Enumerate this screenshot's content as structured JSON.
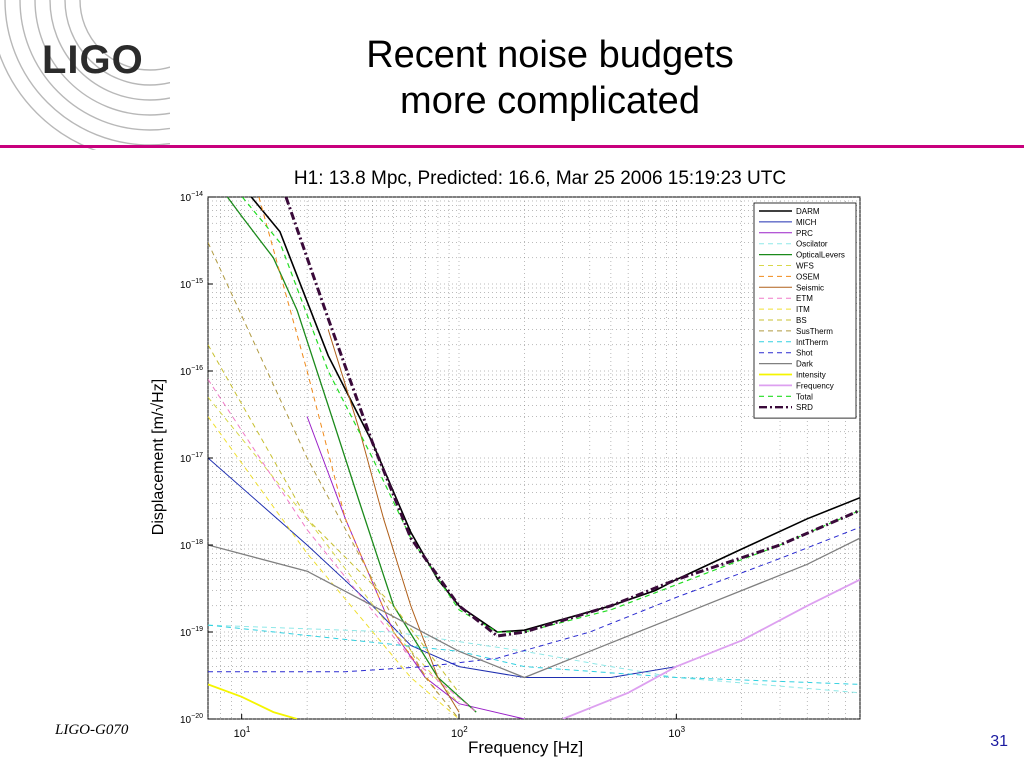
{
  "slide": {
    "logo_text": "LIGO",
    "title_line1": "Recent noise budgets",
    "title_line2": "more complicated",
    "footer_id": "LIGO-G070",
    "page_number": "31",
    "accent_color": "#c8007d"
  },
  "chart_data": {
    "type": "line",
    "title": "H1: 13.8 Mpc, Predicted: 16.6, Mar 25 2006 15:19:23 UTC",
    "xlabel": "Frequency [Hz]",
    "ylabel": "Displacement [m/√Hz]",
    "x_scale": "log",
    "y_scale": "log",
    "xlim": [
      7,
      7000
    ],
    "ylim": [
      1e-20,
      1e-14
    ],
    "x_ticks": [
      {
        "v": 10,
        "label": "10",
        "exp": "1"
      },
      {
        "v": 100,
        "label": "10",
        "exp": "2"
      },
      {
        "v": 1000,
        "label": "10",
        "exp": "3"
      }
    ],
    "y_ticks": [
      {
        "v": 1e-20,
        "label": "10",
        "exp": "−20"
      },
      {
        "v": 1e-19,
        "label": "10",
        "exp": "−19"
      },
      {
        "v": 1e-18,
        "label": "10",
        "exp": "−18"
      },
      {
        "v": 1e-17,
        "label": "10",
        "exp": "−17"
      },
      {
        "v": 1e-16,
        "label": "10",
        "exp": "−16"
      },
      {
        "v": 1e-15,
        "label": "10",
        "exp": "−15"
      },
      {
        "v": 1e-14,
        "label": "10",
        "exp": "−14"
      }
    ],
    "grid": true,
    "legend_position": "top-right",
    "series": [
      {
        "name": "DARM",
        "color": "#000000",
        "dash": "solid",
        "width": 1.6,
        "points": [
          [
            7,
            4e-14
          ],
          [
            15,
            4e-15
          ],
          [
            25,
            1.5e-16
          ],
          [
            40,
            1.5e-17
          ],
          [
            60,
            1.4e-18
          ],
          [
            80,
            4e-19
          ],
          [
            100,
            2e-19
          ],
          [
            150,
            1e-19
          ],
          [
            200,
            1.05e-19
          ],
          [
            300,
            1.4e-19
          ],
          [
            500,
            2e-19
          ],
          [
            800,
            3e-19
          ],
          [
            1000,
            4e-19
          ],
          [
            2000,
            9e-19
          ],
          [
            4000,
            2e-18
          ],
          [
            7000,
            3.5e-18
          ]
        ]
      },
      {
        "name": "MICH",
        "color": "#1f2fb0",
        "dash": "solid",
        "width": 1,
        "points": [
          [
            7,
            1e-17
          ],
          [
            20,
            1e-18
          ],
          [
            40,
            2e-19
          ],
          [
            60,
            7e-20
          ],
          [
            100,
            4e-20
          ],
          [
            200,
            3e-20
          ],
          [
            500,
            3e-20
          ],
          [
            1000,
            4e-20
          ]
        ]
      },
      {
        "name": "PRC",
        "color": "#9a20c8",
        "dash": "solid",
        "width": 1,
        "points": [
          [
            20,
            3e-17
          ],
          [
            30,
            2e-18
          ],
          [
            50,
            1e-19
          ],
          [
            70,
            3e-20
          ],
          [
            100,
            1.5e-20
          ],
          [
            200,
            1e-20
          ]
        ]
      },
      {
        "name": "Oscilator",
        "color": "#8fe8e8",
        "dash": "5,4",
        "width": 1,
        "points": [
          [
            7,
            1.2e-19
          ],
          [
            50,
            1e-19
          ],
          [
            200,
            6e-20
          ],
          [
            500,
            4e-20
          ],
          [
            1000,
            3e-20
          ],
          [
            7000,
            2e-20
          ]
        ]
      },
      {
        "name": "OpticalLevers",
        "color": "#1b8a1b",
        "dash": "solid",
        "width": 1.3,
        "points": [
          [
            7,
            2e-14
          ],
          [
            10,
            6e-15
          ],
          [
            14,
            2e-15
          ],
          [
            18,
            5e-16
          ],
          [
            25,
            4e-17
          ],
          [
            35,
            3e-18
          ],
          [
            50,
            2e-19
          ],
          [
            80,
            3e-20
          ],
          [
            120,
            1.2e-20
          ]
        ]
      },
      {
        "name": "WFS",
        "color": "#d8d84a",
        "dash": "5,4",
        "width": 1,
        "points": [
          [
            7,
            5e-17
          ],
          [
            20,
            2e-18
          ],
          [
            50,
            1e-19
          ],
          [
            100,
            1.5e-20
          ]
        ]
      },
      {
        "name": "OSEM",
        "color": "#f08a1a",
        "dash": "5,4",
        "width": 1,
        "points": [
          [
            12,
            1e-14
          ],
          [
            20,
            1e-16
          ],
          [
            30,
            2e-18
          ],
          [
            50,
            1e-19
          ],
          [
            80,
            2e-20
          ]
        ]
      },
      {
        "name": "Seismic",
        "color": "#b0601a",
        "dash": "solid",
        "width": 1,
        "points": [
          [
            25,
            3e-16
          ],
          [
            35,
            2e-17
          ],
          [
            45,
            2e-18
          ],
          [
            60,
            2e-19
          ],
          [
            80,
            3e-20
          ],
          [
            100,
            1.2e-20
          ]
        ]
      },
      {
        "name": "ETM",
        "color": "#f07ac8",
        "dash": "5,4",
        "width": 1,
        "points": [
          [
            7,
            8e-17
          ],
          [
            20,
            1.5e-18
          ],
          [
            60,
            5e-20
          ],
          [
            120,
            1.2e-20
          ]
        ]
      },
      {
        "name": "ITM",
        "color": "#f0e030",
        "dash": "5,4",
        "width": 1,
        "points": [
          [
            7,
            3e-17
          ],
          [
            20,
            8e-19
          ],
          [
            60,
            3e-20
          ],
          [
            100,
            1e-20
          ]
        ]
      },
      {
        "name": "BS",
        "color": "#c8c030",
        "dash": "5,4",
        "width": 1,
        "points": [
          [
            7,
            2e-16
          ],
          [
            20,
            2e-18
          ],
          [
            50,
            2e-19
          ],
          [
            100,
            2e-20
          ]
        ]
      },
      {
        "name": "SusTherm",
        "color": "#b09a40",
        "dash": "5,4",
        "width": 1,
        "points": [
          [
            7,
            3e-15
          ],
          [
            20,
            1e-17
          ],
          [
            40,
            4e-19
          ],
          [
            70,
            3e-20
          ],
          [
            100,
            1e-20
          ]
        ]
      },
      {
        "name": "IntTherm",
        "color": "#30d0e0",
        "dash": "5,4",
        "width": 1,
        "points": [
          [
            7,
            1.2e-19
          ],
          [
            100,
            6e-20
          ],
          [
            200,
            4e-20
          ],
          [
            1000,
            3e-20
          ],
          [
            7000,
            2.5e-20
          ]
        ]
      },
      {
        "name": "Shot",
        "color": "#2a2ad0",
        "dash": "5,4",
        "width": 1,
        "points": [
          [
            7,
            3.5e-20
          ],
          [
            30,
            3.5e-20
          ],
          [
            70,
            4e-20
          ],
          [
            150,
            5e-20
          ],
          [
            400,
            1e-19
          ],
          [
            1000,
            2.5e-19
          ],
          [
            3000,
            7e-19
          ],
          [
            7000,
            1.6e-18
          ]
        ]
      },
      {
        "name": "Dark",
        "color": "#808080",
        "dash": "solid",
        "width": 1.3,
        "points": [
          [
            7,
            1e-18
          ],
          [
            20,
            5e-19
          ],
          [
            50,
            1.5e-19
          ],
          [
            100,
            6e-20
          ],
          [
            200,
            3e-20
          ],
          [
            400,
            6e-20
          ],
          [
            1000,
            1.5e-19
          ],
          [
            2000,
            3e-19
          ],
          [
            4000,
            6e-19
          ],
          [
            7000,
            1.2e-18
          ]
        ]
      },
      {
        "name": "Intensity",
        "color": "#f5f500",
        "dash": "solid",
        "width": 1.8,
        "points": [
          [
            7,
            2.5e-20
          ],
          [
            10,
            1.8e-20
          ],
          [
            14,
            1.2e-20
          ],
          [
            18,
            1e-20
          ]
        ]
      },
      {
        "name": "Frequency",
        "color": "#dda0f0",
        "dash": "solid",
        "width": 1.8,
        "points": [
          [
            300,
            1e-20
          ],
          [
            600,
            2e-20
          ],
          [
            1000,
            4e-20
          ],
          [
            2000,
            8e-20
          ],
          [
            4000,
            2e-19
          ],
          [
            7000,
            4e-19
          ]
        ]
      },
      {
        "name": "Total",
        "color": "#22dd22",
        "dash": "5,4",
        "width": 1.2,
        "points": [
          [
            7,
            3e-14
          ],
          [
            15,
            3e-15
          ],
          [
            25,
            1e-16
          ],
          [
            40,
            1e-17
          ],
          [
            60,
            1.2e-18
          ],
          [
            100,
            1.8e-19
          ],
          [
            150,
            1e-19
          ],
          [
            200,
            1e-19
          ],
          [
            500,
            1.8e-19
          ],
          [
            1000,
            3.5e-19
          ],
          [
            3000,
            1e-18
          ],
          [
            7000,
            2.5e-18
          ]
        ]
      },
      {
        "name": "SRD",
        "color": "#3a0a3a",
        "dash": "8,3,2,3",
        "width": 3,
        "points": [
          [
            16,
            1e-14
          ],
          [
            25,
            4e-16
          ],
          [
            40,
            1.5e-17
          ],
          [
            60,
            1.2e-18
          ],
          [
            100,
            2e-19
          ],
          [
            150,
            9e-20
          ],
          [
            200,
            1e-19
          ],
          [
            500,
            2e-19
          ],
          [
            1000,
            4e-19
          ],
          [
            3000,
            1e-18
          ],
          [
            7000,
            2.5e-18
          ]
        ]
      }
    ]
  }
}
